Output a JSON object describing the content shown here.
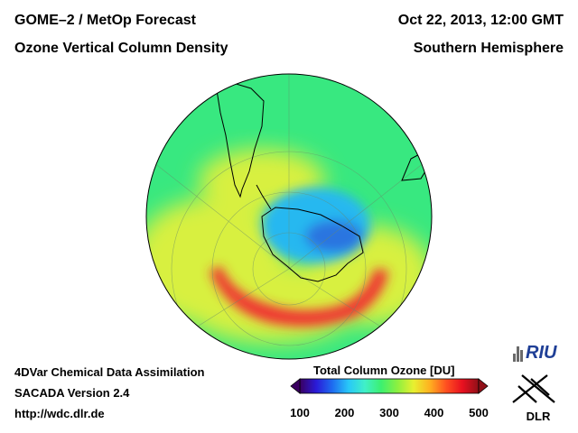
{
  "header": {
    "product": "GOME–2 / MetOp Forecast",
    "quantity": "Ozone Vertical Column Density",
    "datetime": "Oct 22, 2013, 12:00 GMT",
    "region": "Southern Hemisphere"
  },
  "footer": {
    "method": "4DVar Chemical Data Assimilation",
    "version": "SACADA Version 2.4",
    "url": "http://wdc.dlr.de"
  },
  "colorbar": {
    "title": "Total Column Ozone [DU]",
    "ticks": [
      "100",
      "200",
      "300",
      "400",
      "500"
    ],
    "min": 100,
    "max": 500,
    "stops": [
      "#3a0060",
      "#2a1ad8",
      "#1e6cf0",
      "#28c8f8",
      "#40f0c8",
      "#3cf070",
      "#8cf040",
      "#e8f030",
      "#ffb020",
      "#ff5020",
      "#e81020",
      "#901018"
    ]
  },
  "logos": {
    "riu": "RIU",
    "dlr": "DLR"
  },
  "map": {
    "projection": "orthographic-south-polar",
    "colors": {
      "ocean_outer": "#38e880",
      "ozone_hole": "#28b8f0",
      "hole_core": "#2a74e0",
      "high_ring": "#f03030",
      "yellow_band": "#d8f040",
      "outline": "#000000"
    }
  }
}
